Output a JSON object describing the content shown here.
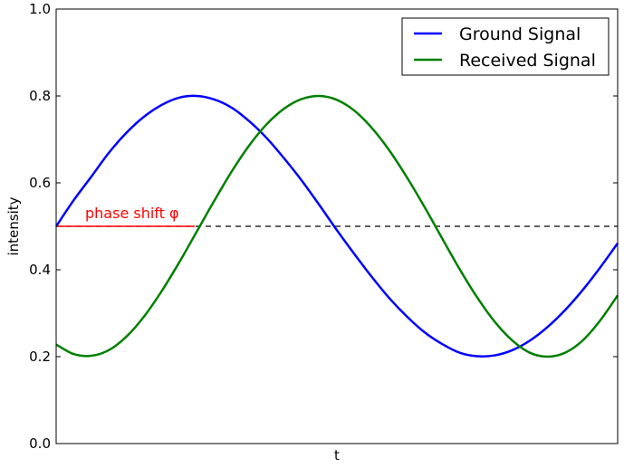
{
  "chart_data": {
    "type": "line",
    "xlabel": "t",
    "ylabel": "intensity",
    "ylim": [
      0.0,
      1.0
    ],
    "xlim": [
      0,
      6.4
    ],
    "y_ticks": [
      "0.0",
      "0.2",
      "0.4",
      "0.6",
      "0.8",
      "1.0"
    ],
    "grid": false,
    "legend_position": "top-right",
    "series": [
      {
        "name": "Ground Signal",
        "color": "#0000ff",
        "x": [
          0,
          0.2,
          0.4,
          0.6,
          0.8,
          1.0,
          1.2,
          1.4,
          1.6,
          1.8,
          2.0,
          2.2,
          2.4,
          2.6,
          2.8,
          3.0,
          3.2,
          3.4,
          3.6,
          3.8,
          4.0,
          4.2,
          4.4,
          4.6,
          4.8,
          5.0,
          5.2,
          5.4,
          5.6,
          5.8,
          6.0,
          6.2,
          6.4
        ],
        "values": [
          0.5,
          0.56,
          0.614,
          0.669,
          0.715,
          0.752,
          0.779,
          0.796,
          0.8,
          0.792,
          0.773,
          0.742,
          0.703,
          0.656,
          0.605,
          0.549,
          0.491,
          0.436,
          0.383,
          0.334,
          0.292,
          0.256,
          0.229,
          0.209,
          0.201,
          0.203,
          0.215,
          0.237,
          0.268,
          0.307,
          0.353,
          0.405,
          0.461
        ]
      },
      {
        "name": "Received Signal",
        "color": "#008000",
        "x": [
          0,
          0.2,
          0.4,
          0.6,
          0.8,
          1.0,
          1.2,
          1.4,
          1.6,
          1.8,
          2.0,
          2.2,
          2.4,
          2.6,
          2.8,
          3.0,
          3.2,
          3.4,
          3.6,
          3.8,
          4.0,
          4.2,
          4.4,
          4.6,
          4.8,
          5.0,
          5.2,
          5.4,
          5.6,
          5.8,
          6.0,
          6.2,
          6.4
        ],
        "values": [
          0.228,
          0.206,
          0.202,
          0.215,
          0.246,
          0.292,
          0.35,
          0.416,
          0.487,
          0.558,
          0.626,
          0.686,
          0.735,
          0.771,
          0.793,
          0.8,
          0.791,
          0.766,
          0.726,
          0.674,
          0.612,
          0.544,
          0.472,
          0.401,
          0.336,
          0.28,
          0.237,
          0.209,
          0.2,
          0.209,
          0.237,
          0.283,
          0.341
        ]
      }
    ],
    "reference_line": {
      "y": 0.5,
      "style": "dashed",
      "color": "#000000"
    },
    "annotation": {
      "text": "phase shift φ",
      "color": "#ff0000",
      "x_start": 0,
      "x_end": 1.58,
      "y": 0.5
    }
  }
}
